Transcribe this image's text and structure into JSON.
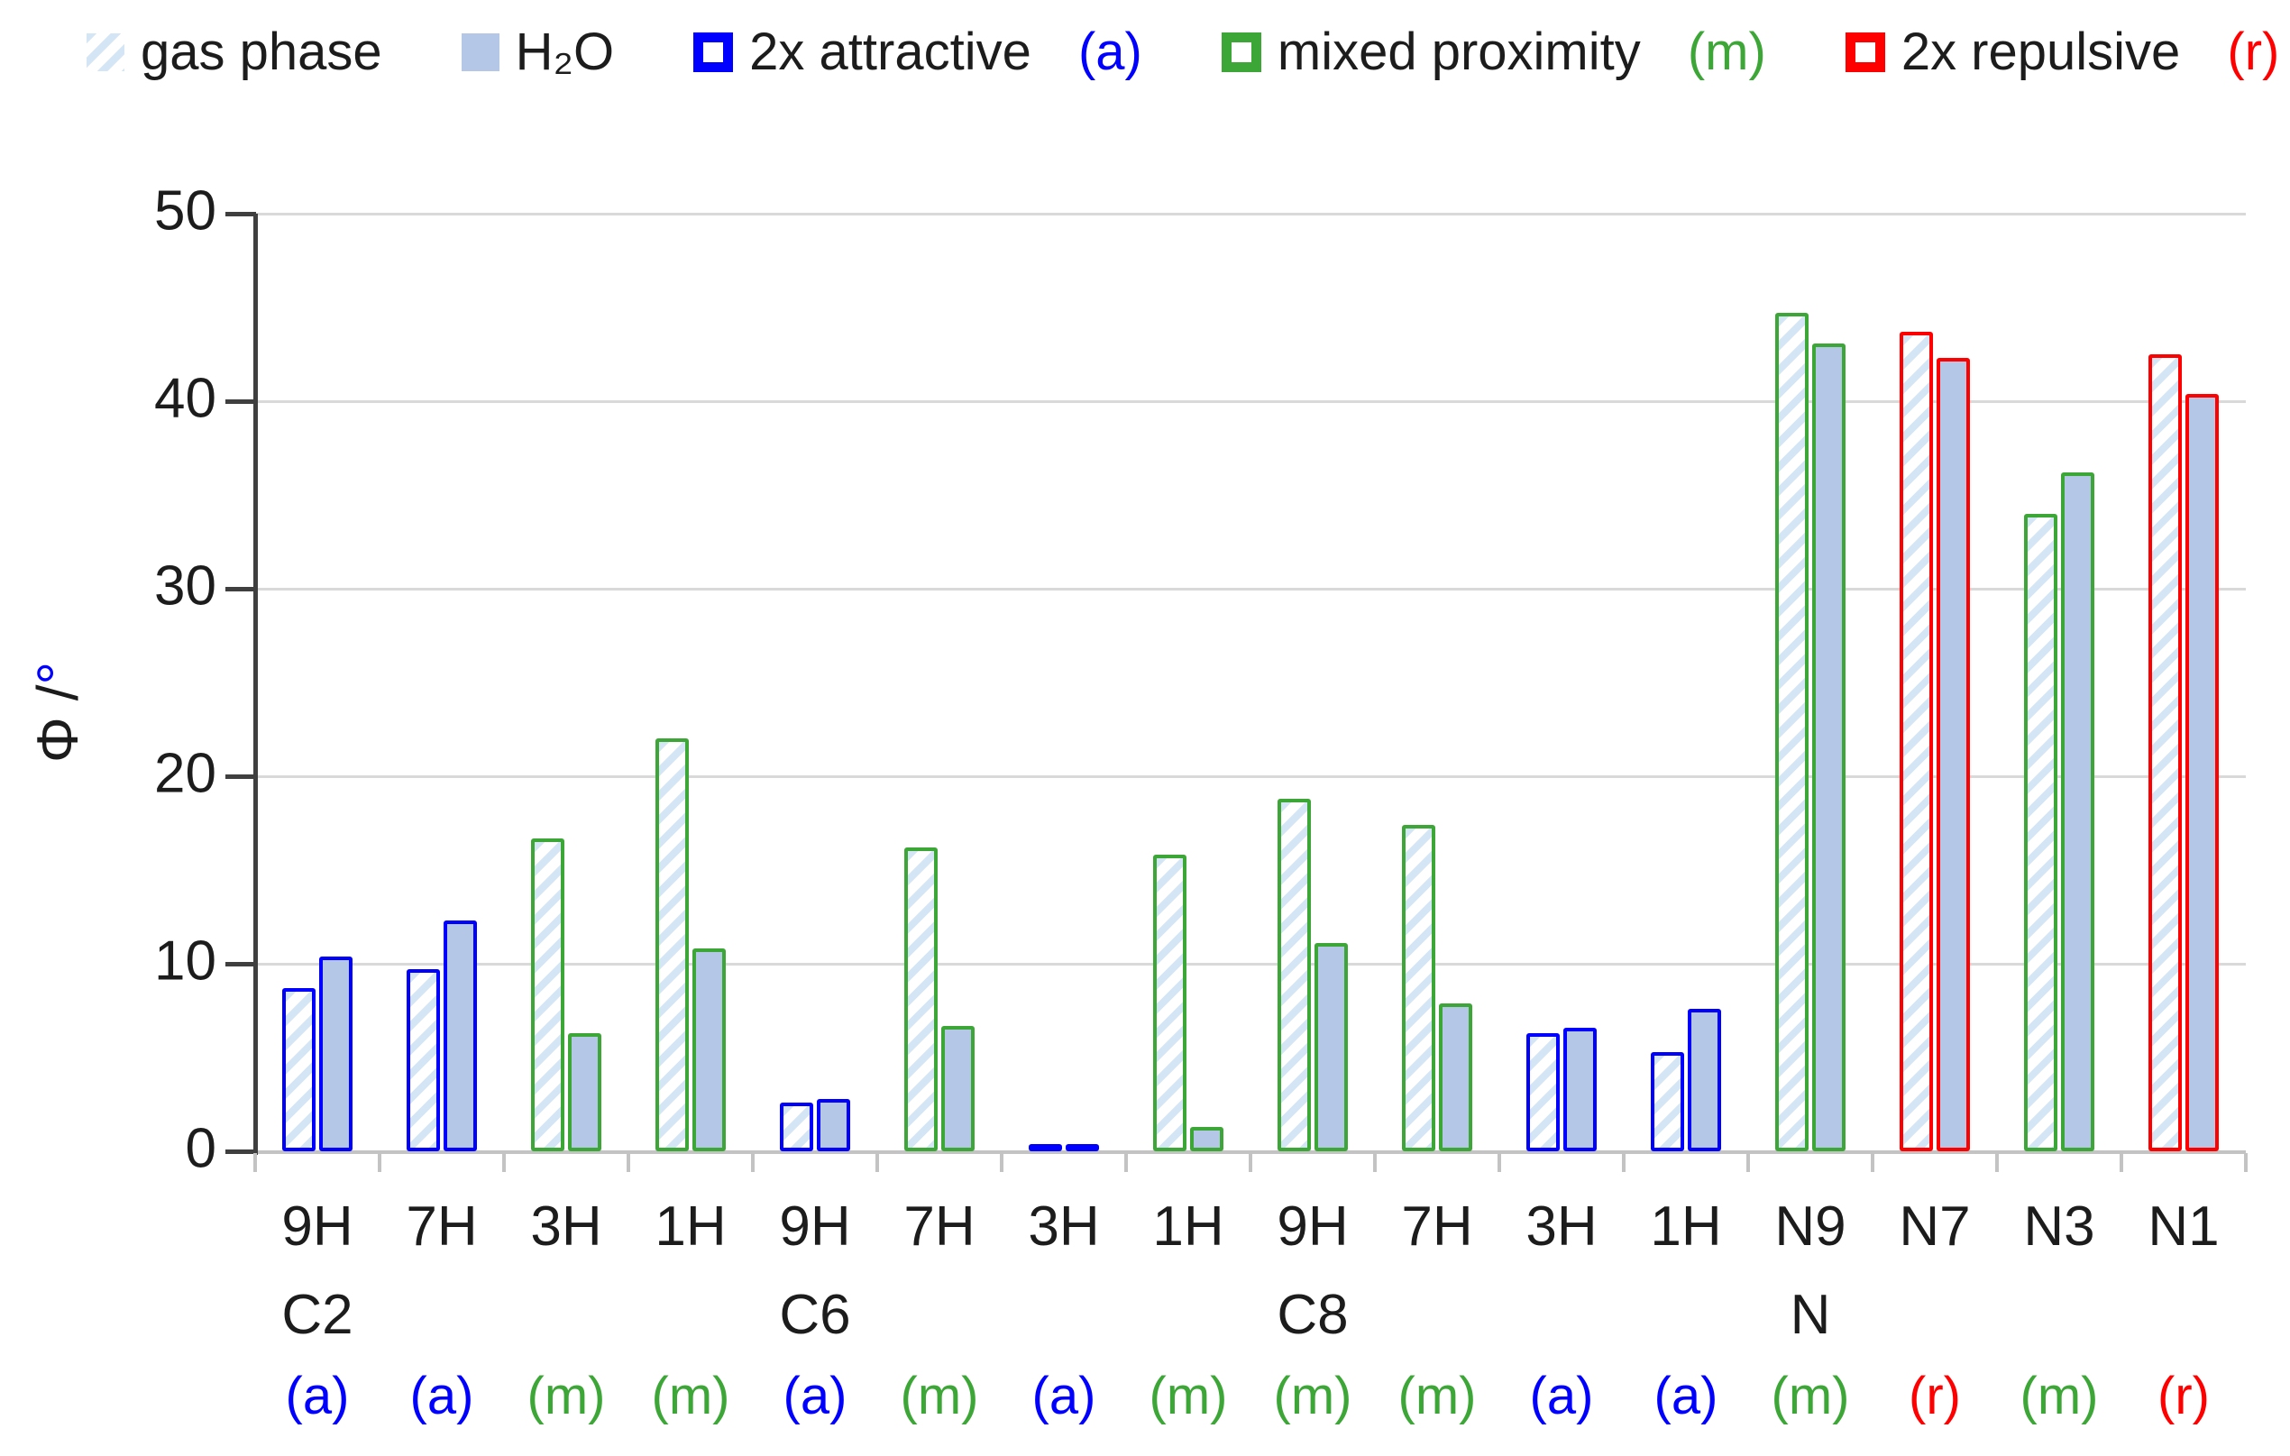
{
  "page": {
    "background": "#ffffff"
  },
  "colors": {
    "attractive_blue": "#0000ff",
    "mixed_green": "#3ca636",
    "repulsive_red": "#ff0000",
    "h2o_fill": "#b4c7e7",
    "hatch_stripe": "#d4e6f5",
    "gridline": "#d9d9d9",
    "baseline": "#c3c3c3",
    "axis_line": "#3f3f3f",
    "text": "#1c1c1c",
    "degree_symbol": "#0000ff"
  },
  "legend": {
    "items": [
      {
        "swatch": "hatched",
        "label": "gas phase",
        "tag": "",
        "tag_type": ""
      },
      {
        "swatch": "solid",
        "label": "H₂O",
        "tag": "",
        "tag_type": ""
      },
      {
        "swatch": "outline",
        "label": "2x attractive",
        "tag": "(a)",
        "tag_type": "a"
      },
      {
        "swatch": "outline",
        "label": "mixed proximity",
        "tag": "(m)",
        "tag_type": "m"
      },
      {
        "swatch": "outline",
        "label": "2x repulsive",
        "tag": "(r)",
        "tag_type": "r"
      }
    ]
  },
  "y_axis": {
    "title_main": "Φ /",
    "title_degree": "°"
  },
  "chart_data": {
    "type": "bar",
    "title": "",
    "ylabel": "Φ /°",
    "xlabel": "",
    "ylim": [
      0,
      50
    ],
    "yticks": [
      0,
      10,
      20,
      30,
      40,
      50
    ],
    "grid": true,
    "legend_position": "top",
    "series_names": [
      "gas phase",
      "H₂O"
    ],
    "groups": [
      {
        "label": "9H",
        "sublabel": "C2",
        "tag": "(a)",
        "tag_type": "a",
        "gas_phase": 8.7,
        "h2o": 10.4
      },
      {
        "label": "7H",
        "sublabel": "",
        "tag": "(a)",
        "tag_type": "a",
        "gas_phase": 9.7,
        "h2o": 12.3
      },
      {
        "label": "3H",
        "sublabel": "",
        "tag": "(m)",
        "tag_type": "m",
        "gas_phase": 16.7,
        "h2o": 6.3
      },
      {
        "label": "1H",
        "sublabel": "",
        "tag": "(m)",
        "tag_type": "m",
        "gas_phase": 22.0,
        "h2o": 10.8
      },
      {
        "label": "9H",
        "sublabel": "C6",
        "tag": "(a)",
        "tag_type": "a",
        "gas_phase": 2.6,
        "h2o": 2.8
      },
      {
        "label": "7H",
        "sublabel": "",
        "tag": "(m)",
        "tag_type": "m",
        "gas_phase": 16.2,
        "h2o": 6.7
      },
      {
        "label": "3H",
        "sublabel": "",
        "tag": "(a)",
        "tag_type": "a",
        "gas_phase": 0.2,
        "h2o": 0.1
      },
      {
        "label": "1H",
        "sublabel": "",
        "tag": "(m)",
        "tag_type": "m",
        "gas_phase": 15.8,
        "h2o": 1.3
      },
      {
        "label": "9H",
        "sublabel": "C8",
        "tag": "(m)",
        "tag_type": "m",
        "gas_phase": 18.8,
        "h2o": 11.1
      },
      {
        "label": "7H",
        "sublabel": "",
        "tag": "(m)",
        "tag_type": "m",
        "gas_phase": 17.4,
        "h2o": 7.9
      },
      {
        "label": "3H",
        "sublabel": "",
        "tag": "(a)",
        "tag_type": "a",
        "gas_phase": 6.3,
        "h2o": 6.6
      },
      {
        "label": "1H",
        "sublabel": "",
        "tag": "(a)",
        "tag_type": "a",
        "gas_phase": 5.3,
        "h2o": 7.6
      },
      {
        "label": "N9",
        "sublabel": "N",
        "tag": "(m)",
        "tag_type": "m",
        "gas_phase": 44.7,
        "h2o": 43.1
      },
      {
        "label": "N7",
        "sublabel": "",
        "tag": "(r)",
        "tag_type": "r",
        "gas_phase": 43.7,
        "h2o": 42.3
      },
      {
        "label": "N3",
        "sublabel": "",
        "tag": "(m)",
        "tag_type": "m",
        "gas_phase": 34.0,
        "h2o": 36.2
      },
      {
        "label": "N1",
        "sublabel": "",
        "tag": "(r)",
        "tag_type": "r",
        "gas_phase": 42.5,
        "h2o": 40.4
      }
    ]
  }
}
